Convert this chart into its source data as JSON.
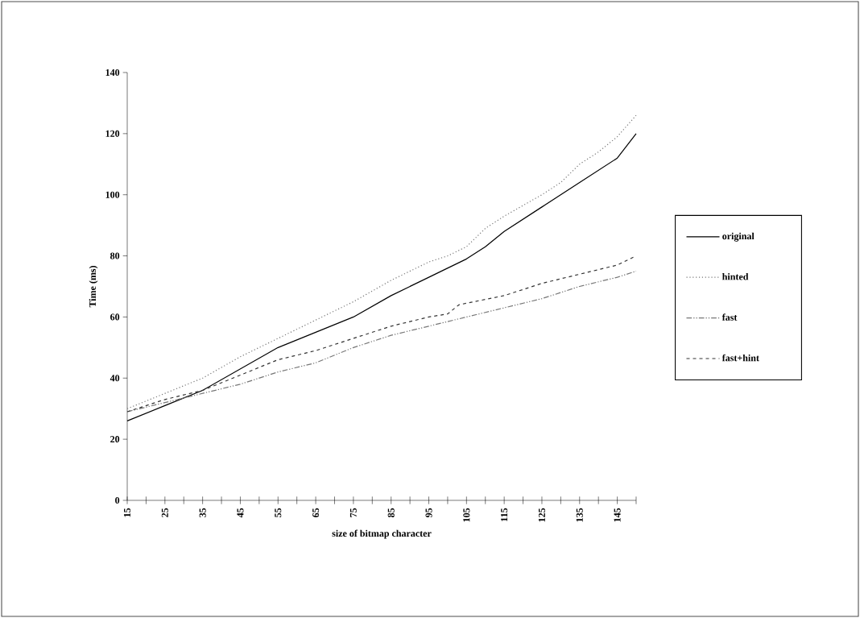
{
  "chart_data": {
    "type": "line",
    "xlabel": "size of bitmap character",
    "ylabel": "Time (ms)",
    "xlim": [
      15,
      150
    ],
    "ylim": [
      0,
      140
    ],
    "xticks": [
      15,
      {
        "value": 20,
        "label": null
      },
      25,
      {
        "value": 30,
        "label": null
      },
      35,
      {
        "value": 40,
        "label": null
      },
      45,
      {
        "value": 50,
        "label": null
      },
      55,
      {
        "value": 60,
        "label": null
      },
      65,
      {
        "value": 70,
        "label": null
      },
      75,
      {
        "value": 80,
        "label": null
      },
      85,
      {
        "value": 90,
        "label": null
      },
      95,
      {
        "value": 100,
        "label": null
      },
      105,
      {
        "value": 110,
        "label": null
      },
      115,
      {
        "value": 120,
        "label": null
      },
      125,
      {
        "value": 130,
        "label": null
      },
      135,
      {
        "value": 140,
        "label": null
      },
      145,
      {
        "value": 150,
        "label": null
      }
    ],
    "yticks": [
      0,
      20,
      40,
      60,
      80,
      100,
      120,
      140
    ],
    "grid": false,
    "legend": "right",
    "marker": "none",
    "series": [
      {
        "name": "original",
        "color": "#000000",
        "line_style": "solid",
        "x": [
          15,
          25,
          35,
          45,
          55,
          65,
          75,
          85,
          95,
          105,
          110,
          115,
          125,
          135,
          145,
          150
        ],
        "values": [
          26,
          31,
          36,
          43,
          50,
          55,
          60,
          67,
          73,
          79,
          83,
          88,
          96,
          104,
          112,
          120
        ]
      },
      {
        "name": "hinted",
        "color": "#777777",
        "line_style": "dotted",
        "x": [
          15,
          25,
          35,
          45,
          55,
          65,
          75,
          85,
          95,
          100,
          105,
          110,
          115,
          125,
          130,
          135,
          140,
          145,
          150
        ],
        "values": [
          30,
          35,
          40,
          47,
          53,
          59,
          65,
          72,
          78,
          80,
          83,
          89,
          93,
          100,
          104,
          110,
          114,
          119,
          126
        ]
      },
      {
        "name": "fast",
        "color": "#777777",
        "line_style": "dashdotted",
        "x": [
          15,
          25,
          35,
          45,
          55,
          65,
          75,
          85,
          95,
          105,
          115,
          125,
          135,
          145,
          150
        ],
        "values": [
          29,
          32,
          35,
          38,
          42,
          45,
          50,
          54,
          57,
          60,
          63,
          66,
          70,
          73,
          75
        ]
      },
      {
        "name": "fast+hint",
        "color": "#333333",
        "line_style": "dashed",
        "x": [
          15,
          25,
          35,
          45,
          55,
          65,
          75,
          85,
          95,
          100,
          103,
          115,
          125,
          135,
          145,
          150
        ],
        "values": [
          29,
          33,
          36,
          41,
          46,
          49,
          53,
          57,
          60,
          61,
          64,
          67,
          71,
          74,
          77,
          80
        ]
      }
    ]
  }
}
